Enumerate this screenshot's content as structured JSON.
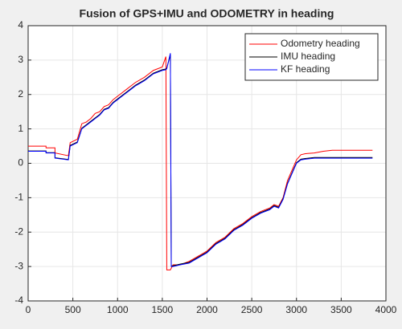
{
  "chart_data": {
    "type": "line",
    "title": "Fusion of GPS+IMU and ODOMETRY in heading",
    "x": [
      0,
      200,
      200,
      300,
      300,
      450,
      470,
      550,
      600,
      650,
      700,
      750,
      800,
      850,
      900,
      950,
      1000,
      1050,
      1100,
      1150,
      1200,
      1300,
      1400,
      1500,
      1540,
      1550,
      1590,
      1600,
      1620,
      1700,
      1800,
      1900,
      2000,
      2100,
      2200,
      2300,
      2400,
      2500,
      2600,
      2700,
      2750,
      2800,
      2850,
      2900,
      2950,
      3000,
      3050,
      3100,
      3200,
      3300,
      3400,
      3850
    ],
    "series": [
      {
        "name": "Odometry heading",
        "color": "#ff0000",
        "values": [
          0.5,
          0.5,
          0.45,
          0.45,
          0.3,
          0.22,
          0.6,
          0.7,
          1.15,
          1.2,
          1.3,
          1.45,
          1.5,
          1.65,
          1.7,
          1.85,
          1.95,
          2.05,
          2.15,
          2.25,
          2.35,
          2.5,
          2.7,
          2.8,
          3.1,
          -3.1,
          -3.1,
          -3.05,
          -2.95,
          -2.95,
          -2.85,
          -2.7,
          -2.55,
          -2.3,
          -2.15,
          -1.9,
          -1.75,
          -1.55,
          -1.4,
          -1.3,
          -1.2,
          -1.25,
          -1.0,
          -0.5,
          -0.2,
          0.1,
          0.25,
          0.28,
          0.3,
          0.35,
          0.38,
          0.38
        ]
      },
      {
        "name": "IMU heading",
        "color": "#000000",
        "values": [
          0.36,
          0.36,
          0.31,
          0.31,
          0.16,
          0.11,
          0.52,
          0.62,
          1.02,
          1.12,
          1.22,
          1.32,
          1.42,
          1.57,
          1.62,
          1.77,
          1.87,
          1.97,
          2.07,
          2.17,
          2.27,
          2.42,
          2.62,
          2.72,
          2.74,
          2.77,
          3.15,
          -2.98,
          -2.98,
          -2.93,
          -2.88,
          -2.73,
          -2.58,
          -2.33,
          -2.18,
          -1.93,
          -1.78,
          -1.58,
          -1.43,
          -1.33,
          -1.23,
          -1.28,
          -1.03,
          -0.58,
          -0.28,
          0.02,
          0.12,
          0.14,
          0.17,
          0.17,
          0.17,
          0.17
        ]
      },
      {
        "name": "KF heading",
        "color": "#0000ff",
        "values": [
          0.35,
          0.35,
          0.3,
          0.3,
          0.15,
          0.1,
          0.5,
          0.6,
          1.0,
          1.1,
          1.2,
          1.3,
          1.4,
          1.55,
          1.6,
          1.75,
          1.85,
          1.95,
          2.05,
          2.15,
          2.25,
          2.4,
          2.6,
          2.7,
          2.72,
          2.75,
          3.2,
          -3.0,
          -3.0,
          -2.95,
          -2.9,
          -2.75,
          -2.6,
          -2.35,
          -2.2,
          -1.95,
          -1.8,
          -1.6,
          -1.45,
          -1.35,
          -1.25,
          -1.3,
          -1.05,
          -0.6,
          -0.3,
          0.0,
          0.1,
          0.12,
          0.15,
          0.15,
          0.15,
          0.15
        ]
      }
    ],
    "xlim": [
      0,
      4000
    ],
    "xticks": [
      0,
      500,
      1000,
      1500,
      2000,
      2500,
      3000,
      3500,
      4000
    ],
    "ylim": [
      -4,
      4
    ],
    "yticks": [
      -4,
      -3,
      -2,
      -1,
      0,
      1,
      2,
      3,
      4
    ],
    "grid": true,
    "legend": "top-right"
  }
}
